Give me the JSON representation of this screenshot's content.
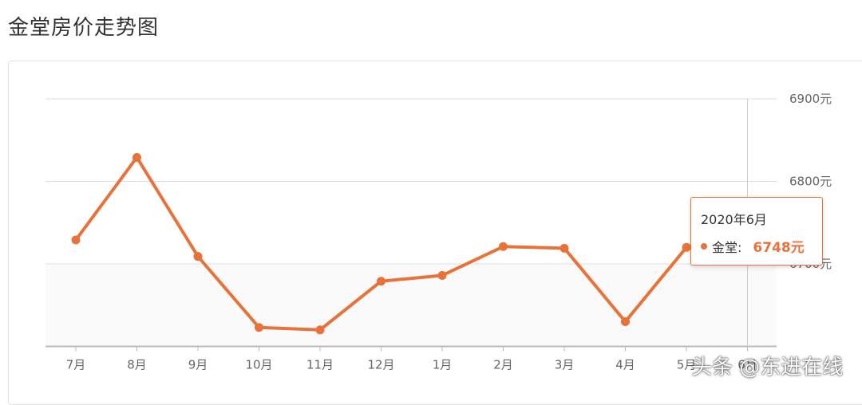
{
  "page_title": "金堂房价走势图",
  "tooltip": {
    "title": "2020年6月",
    "series": "金堂:",
    "value": "6748元"
  },
  "watermark": "头条 @东进在线",
  "colors": {
    "line": "#e8733a",
    "grid": "#dddddd",
    "axis_text": "#666666"
  },
  "chart_data": {
    "type": "line",
    "title": "金堂房价走势图",
    "categories": [
      "7月",
      "8月",
      "9月",
      "10月",
      "11月",
      "12月",
      "1月",
      "2月",
      "3月",
      "4月",
      "5月",
      "6月"
    ],
    "series": [
      {
        "name": "金堂",
        "values": [
          6729,
          6829,
          6709,
          6623,
          6620,
          6679,
          6686,
          6721,
          6719,
          6630,
          6720,
          6748
        ]
      }
    ],
    "ylim": [
      6600,
      6900
    ],
    "yticks": [
      6700,
      6800,
      6900
    ],
    "ytick_labels": [
      "6700元",
      "6800元",
      "6900元"
    ],
    "ytick_position": "right",
    "grid": true,
    "highlight_index": 11
  }
}
